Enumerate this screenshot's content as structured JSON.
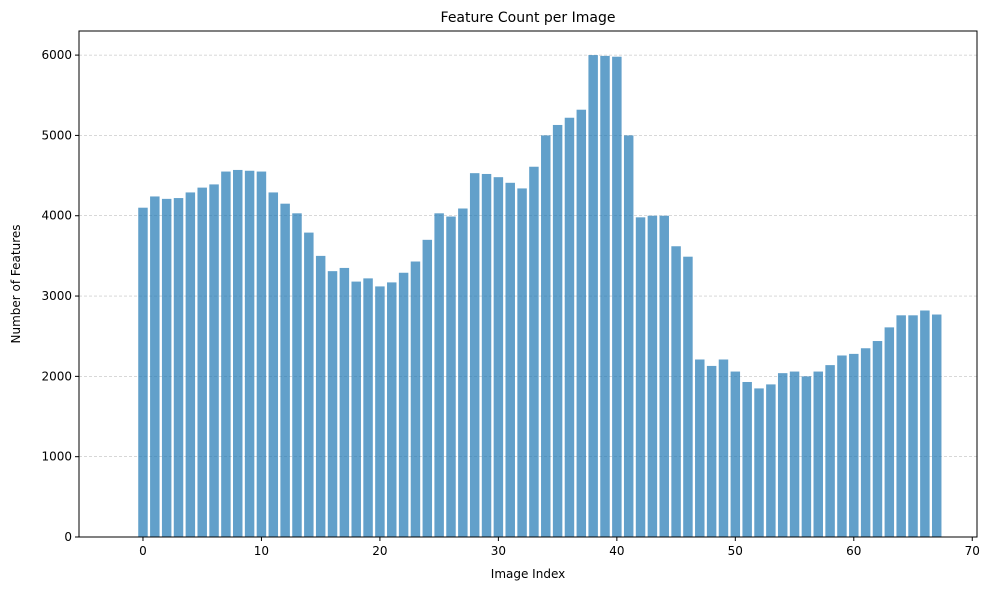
{
  "chart_data": {
    "type": "bar",
    "title": "Feature Count per Image",
    "xlabel": "Image Index",
    "ylabel": "Number of Features",
    "xlim": [
      -5.4,
      70.4
    ],
    "ylim": [
      0,
      6300
    ],
    "xticks": [
      0,
      10,
      20,
      30,
      40,
      50,
      60,
      70
    ],
    "yticks": [
      0,
      1000,
      2000,
      3000,
      4000,
      5000,
      6000
    ],
    "grid": {
      "axis": "y",
      "style": "dashed"
    },
    "bar_color": "#1f77b4",
    "bar_opacity": 0.7,
    "x": [
      0,
      1,
      2,
      3,
      4,
      5,
      6,
      7,
      8,
      9,
      10,
      11,
      12,
      13,
      14,
      15,
      16,
      17,
      18,
      19,
      20,
      21,
      22,
      23,
      24,
      25,
      26,
      27,
      28,
      29,
      30,
      31,
      32,
      33,
      34,
      35,
      36,
      37,
      38,
      39,
      40,
      41,
      42,
      43,
      44,
      45,
      46,
      47,
      48,
      49,
      50,
      51,
      52,
      53,
      54,
      55,
      56,
      57,
      58,
      59,
      60,
      61,
      62,
      63,
      64,
      65,
      66,
      67
    ],
    "values": [
      4100,
      4240,
      4210,
      4220,
      4290,
      4350,
      4390,
      4550,
      4570,
      4560,
      4550,
      4290,
      4150,
      4030,
      3790,
      3500,
      3310,
      3350,
      3180,
      3220,
      3120,
      3170,
      3290,
      3430,
      3700,
      4030,
      3990,
      4090,
      4530,
      4520,
      4480,
      4410,
      4340,
      4610,
      5000,
      5130,
      5220,
      5320,
      6000,
      5990,
      5980,
      5000,
      3980,
      4000,
      4000,
      3620,
      3490,
      2210,
      2130,
      2210,
      2060,
      1930,
      1850,
      1900,
      2040,
      2060,
      2000,
      2060,
      2140,
      2260,
      2280,
      2350,
      2440,
      2610,
      2760,
      2760,
      2820,
      2770
    ]
  }
}
